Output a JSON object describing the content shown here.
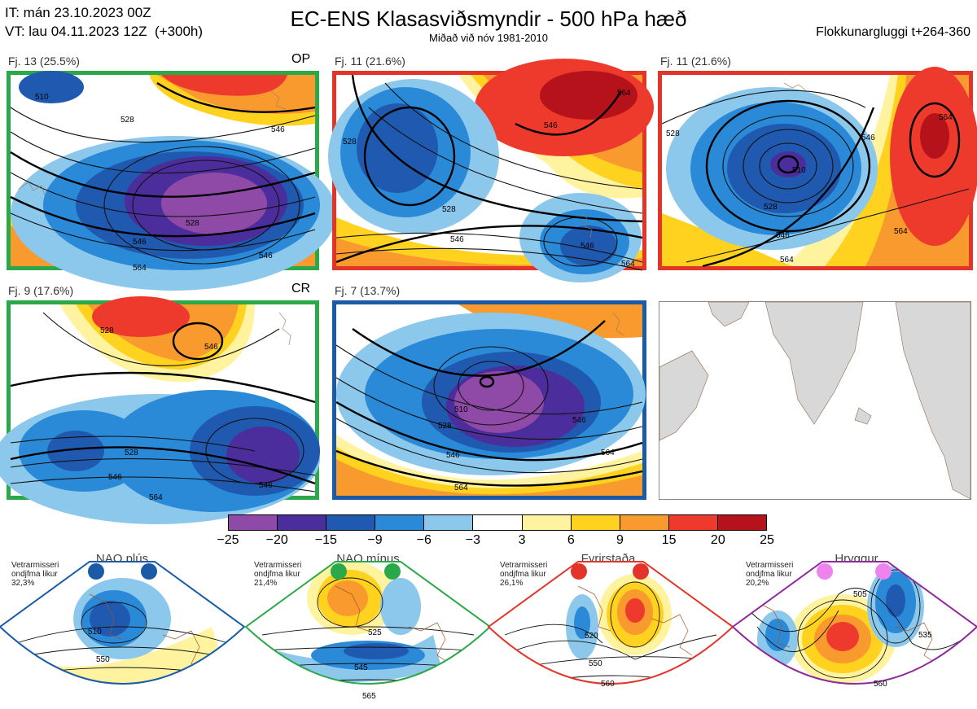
{
  "header": {
    "init_line": "IT: mán 23.10.2023 00Z",
    "valid_line": "VT: lau 04.11.2023 12Z  (+300h)",
    "title": "EC-ENS Klasasviðsmyndir - 500 hPa hæð",
    "subtitle": "Miðað við nóv 1981-2010",
    "window": "Flokkunargluggi t+264-360"
  },
  "panels": [
    {
      "label": "Fj. 13 (25.5%)",
      "tag": "OP",
      "border_color": "#2ba84a",
      "contours": [
        "510",
        "528",
        "546",
        "564",
        "546",
        "528",
        "546"
      ]
    },
    {
      "label": "Fj. 11 (21.6%)",
      "tag": "",
      "border_color": "#e3342a",
      "contours": [
        "528",
        "546",
        "564",
        "528",
        "546",
        "546",
        "564"
      ]
    },
    {
      "label": "Fj. 11 (21.6%)",
      "tag": "",
      "border_color": "#e3342a",
      "contours": [
        "510",
        "528",
        "546",
        "564",
        "528",
        "546",
        "564",
        "564"
      ]
    },
    {
      "label": "Fj. 9 (17.6%)",
      "tag": "CR",
      "border_color": "#2ba84a",
      "contours": [
        "528",
        "546",
        "528",
        "546",
        "564",
        "546"
      ]
    },
    {
      "label": "Fj. 7 (13.7%)",
      "tag": "",
      "border_color": "#1a5aa6",
      "contours": [
        "510",
        "528",
        "546",
        "564",
        "564",
        "546"
      ]
    }
  ],
  "colorbar": {
    "ticks": [
      "−25",
      "−20",
      "−15",
      "−9",
      "−6",
      "−3",
      "3",
      "6",
      "9",
      "15",
      "20",
      "25"
    ],
    "colors": [
      "#8e4aa6",
      "#4b2d9b",
      "#1f5ab0",
      "#2a8ad8",
      "#8cc8ec",
      "#ffffff",
      "#fff3a0",
      "#ffd21f",
      "#f99a2e",
      "#ee3a2c",
      "#b5121b"
    ]
  },
  "regimes": [
    {
      "name": "NAO plús",
      "info": "Vetrarmisseri ondjfma likur 32,3%",
      "color": "#1a5aa6",
      "contours": [
        "510",
        "550"
      ]
    },
    {
      "name": "NAO mínus",
      "info": "Vetrarmisseri ondjfma likur 21,4%",
      "color": "#2ba84a",
      "contours": [
        "525",
        "545",
        "565"
      ]
    },
    {
      "name": "Fyrirstaða",
      "info": "Vetrarmisseri ondjfma likur 26,1%",
      "color": "#e3342a",
      "contours": [
        "520",
        "550",
        "560"
      ]
    },
    {
      "name": "Hryggur",
      "info": "Vetrarmisseri ondjfma likur 20,2%",
      "color": "#8e2a9b",
      "contours": [
        "505",
        "535",
        "560"
      ]
    }
  ]
}
